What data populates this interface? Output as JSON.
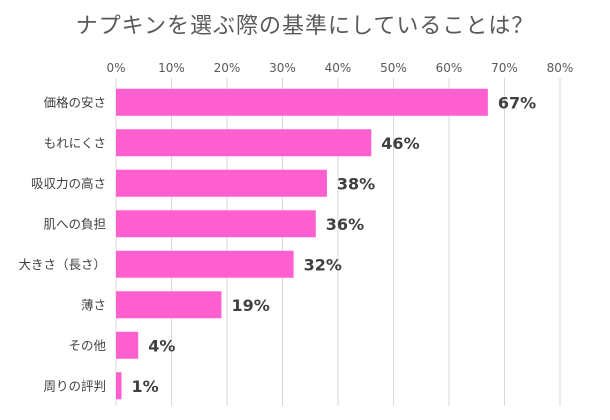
{
  "chart_data": {
    "type": "bar",
    "orientation": "horizontal",
    "title": "ナプキンを選ぶ際の基準にしていることは？",
    "categories": [
      "価格の安さ",
      "もれにくさ",
      "吸収力の高さ",
      "肌への負担",
      "大きさ（長さ）",
      "薄さ",
      "その他",
      "周りの評判"
    ],
    "values": [
      67,
      46,
      38,
      36,
      32,
      19,
      4,
      1
    ],
    "value_labels": [
      "67%",
      "46%",
      "38%",
      "36%",
      "32%",
      "19%",
      "4%",
      "1%"
    ],
    "xlim": [
      0,
      80
    ],
    "xticks": [
      0,
      10,
      20,
      30,
      40,
      50,
      60,
      70,
      80
    ],
    "xtick_labels": [
      "0%",
      "10%",
      "20%",
      "30%",
      "40%",
      "50%",
      "60%",
      "70%",
      "80%"
    ],
    "xlabel": "",
    "ylabel": "",
    "axis_position": "top",
    "grid": true,
    "legend": "none",
    "bar_color": "#ff5fcf",
    "grid_color": "#d9d9d9",
    "text_color": "#595959"
  }
}
